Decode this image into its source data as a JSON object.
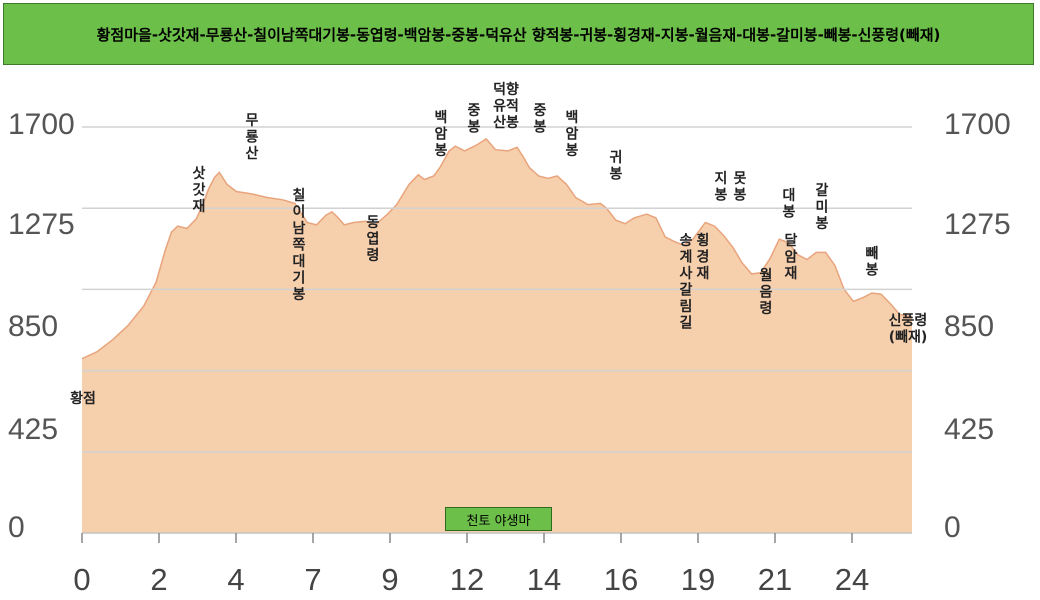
{
  "title": "황점마을-삿갓재-무룡산-칠이남쪽대기봉-동엽령-백암봉-중봉-덕유산 향적봉-귀봉-횡경재-지봉-월음재-대봉-갈미봉-빼봉-신풍령(빼재)",
  "watermark": "천토 야생마",
  "colors": {
    "fill": "#f6cfad",
    "line": "#e8a47c",
    "grid": "#d2d2d2",
    "title_bg": "#6cc04a"
  },
  "chart_data": {
    "type": "area",
    "title": "황점마을-삿갓재-무룡산-칠이남쪽대기봉-동엽령-백암봉-중봉-덕유산 향적봉-귀봉-횡경재-지봉-월음재-대봉-갈미봉-빼봉-신풍령(빼재)",
    "xlabel": "",
    "ylabel": "",
    "x_ticks": [
      "0",
      "2",
      "4",
      "7",
      "9",
      "12",
      "14",
      "16",
      "19",
      "21",
      "24"
    ],
    "y_ticks": [
      "0",
      "425",
      "850",
      "1275",
      "1700"
    ],
    "y_ticks_right": [
      "0",
      "425",
      "850",
      "1275",
      "1700"
    ],
    "ylim": [
      0,
      1700
    ],
    "xlim": [
      0,
      26.9
    ],
    "grid": true,
    "series": [
      {
        "name": "",
        "points": [
          [
            0,
            730
          ],
          [
            0.5,
            760
          ],
          [
            1,
            810
          ],
          [
            1.5,
            870
          ],
          [
            2,
            950
          ],
          [
            2.4,
            1050
          ],
          [
            2.7,
            1185
          ],
          [
            2.9,
            1260
          ],
          [
            3.1,
            1285
          ],
          [
            3.4,
            1275
          ],
          [
            3.7,
            1315
          ],
          [
            3.9,
            1370
          ],
          [
            4.1,
            1440
          ],
          [
            4.3,
            1490
          ],
          [
            4.45,
            1510
          ],
          [
            4.7,
            1460
          ],
          [
            5,
            1430
          ],
          [
            5.5,
            1420
          ],
          [
            6,
            1405
          ],
          [
            6.5,
            1395
          ],
          [
            6.9,
            1380
          ],
          [
            7.1,
            1340
          ],
          [
            7.3,
            1300
          ],
          [
            7.6,
            1290
          ],
          [
            7.9,
            1330
          ],
          [
            8.1,
            1345
          ],
          [
            8.3,
            1320
          ],
          [
            8.5,
            1290
          ],
          [
            8.8,
            1300
          ],
          [
            9.2,
            1305
          ],
          [
            9.5,
            1290
          ],
          [
            9.9,
            1335
          ],
          [
            10.2,
            1375
          ],
          [
            10.6,
            1460
          ],
          [
            10.9,
            1500
          ],
          [
            11.1,
            1480
          ],
          [
            11.4,
            1495
          ],
          [
            11.6,
            1530
          ],
          [
            11.9,
            1600
          ],
          [
            12.1,
            1620
          ],
          [
            12.4,
            1600
          ],
          [
            12.8,
            1625
          ],
          [
            13.1,
            1650
          ],
          [
            13.4,
            1605
          ],
          [
            13.8,
            1600
          ],
          [
            14.1,
            1615
          ],
          [
            14.3,
            1575
          ],
          [
            14.5,
            1530
          ],
          [
            14.8,
            1495
          ],
          [
            15.1,
            1485
          ],
          [
            15.4,
            1495
          ],
          [
            15.7,
            1460
          ],
          [
            16.0,
            1405
          ],
          [
            16.4,
            1375
          ],
          [
            16.8,
            1380
          ],
          [
            17.0,
            1360
          ],
          [
            17.3,
            1310
          ],
          [
            17.6,
            1295
          ],
          [
            17.9,
            1320
          ],
          [
            18.3,
            1335
          ],
          [
            18.6,
            1320
          ],
          [
            18.9,
            1240
          ],
          [
            19.2,
            1220
          ],
          [
            19.5,
            1205
          ],
          [
            19.8,
            1230
          ],
          [
            20.2,
            1300
          ],
          [
            20.5,
            1285
          ],
          [
            20.8,
            1245
          ],
          [
            21.1,
            1195
          ],
          [
            21.4,
            1130
          ],
          [
            21.7,
            1085
          ],
          [
            22.0,
            1090
          ],
          [
            22.3,
            1150
          ],
          [
            22.6,
            1230
          ],
          [
            22.9,
            1215
          ],
          [
            23.2,
            1165
          ],
          [
            23.5,
            1145
          ],
          [
            23.8,
            1175
          ],
          [
            24.1,
            1175
          ],
          [
            24.4,
            1120
          ],
          [
            24.7,
            1020
          ],
          [
            25.0,
            970
          ],
          [
            25.3,
            985
          ],
          [
            25.6,
            1005
          ],
          [
            25.9,
            1000
          ],
          [
            26.2,
            960
          ],
          [
            26.5,
            915
          ],
          [
            26.9,
            905
          ]
        ]
      }
    ],
    "annotations": [
      {
        "text": "황점",
        "x": 0.2,
        "y": 735
      },
      {
        "text": "삿갓재",
        "x": 3.0,
        "y": 1270
      },
      {
        "text": "무룡산",
        "x": 4.45,
        "y": 1515
      },
      {
        "text": "칠이남쪽대기봉",
        "x": 6.9,
        "y": 1380
      },
      {
        "text": "동엽령",
        "x": 8.5,
        "y": 1290
      },
      {
        "text": "백암봉",
        "x": 10.8,
        "y": 1500
      },
      {
        "text": "중봉",
        "x": 11.9,
        "y": 1620
      },
      {
        "text": "덕유산향적봉",
        "x": 13.1,
        "y": 1650
      },
      {
        "text": "중봉",
        "x": 14.1,
        "y": 1615
      },
      {
        "text": "백암봉",
        "x": 15.1,
        "y": 1495
      },
      {
        "text": "귀봉",
        "x": 16.4,
        "y": 1380
      },
      {
        "text": "송계사갈림길",
        "x": 19.0,
        "y": 1235
      },
      {
        "text": "횡경재",
        "x": 19.5,
        "y": 1205
      },
      {
        "text": "지봉",
        "x": 20.3,
        "y": 1300
      },
      {
        "text": "못봉",
        "x": 20.9,
        "y": 1290
      },
      {
        "text": "월음령",
        "x": 21.6,
        "y": 1090
      },
      {
        "text": "대봉",
        "x": 22.5,
        "y": 1230
      },
      {
        "text": "달암재",
        "x": 23.1,
        "y": 1165
      },
      {
        "text": "갈미봉",
        "x": 23.7,
        "y": 1175
      },
      {
        "text": "빼봉",
        "x": 25.5,
        "y": 1005
      },
      {
        "text": "신풍령(빼재)",
        "x": 26.5,
        "y": 905
      }
    ]
  }
}
